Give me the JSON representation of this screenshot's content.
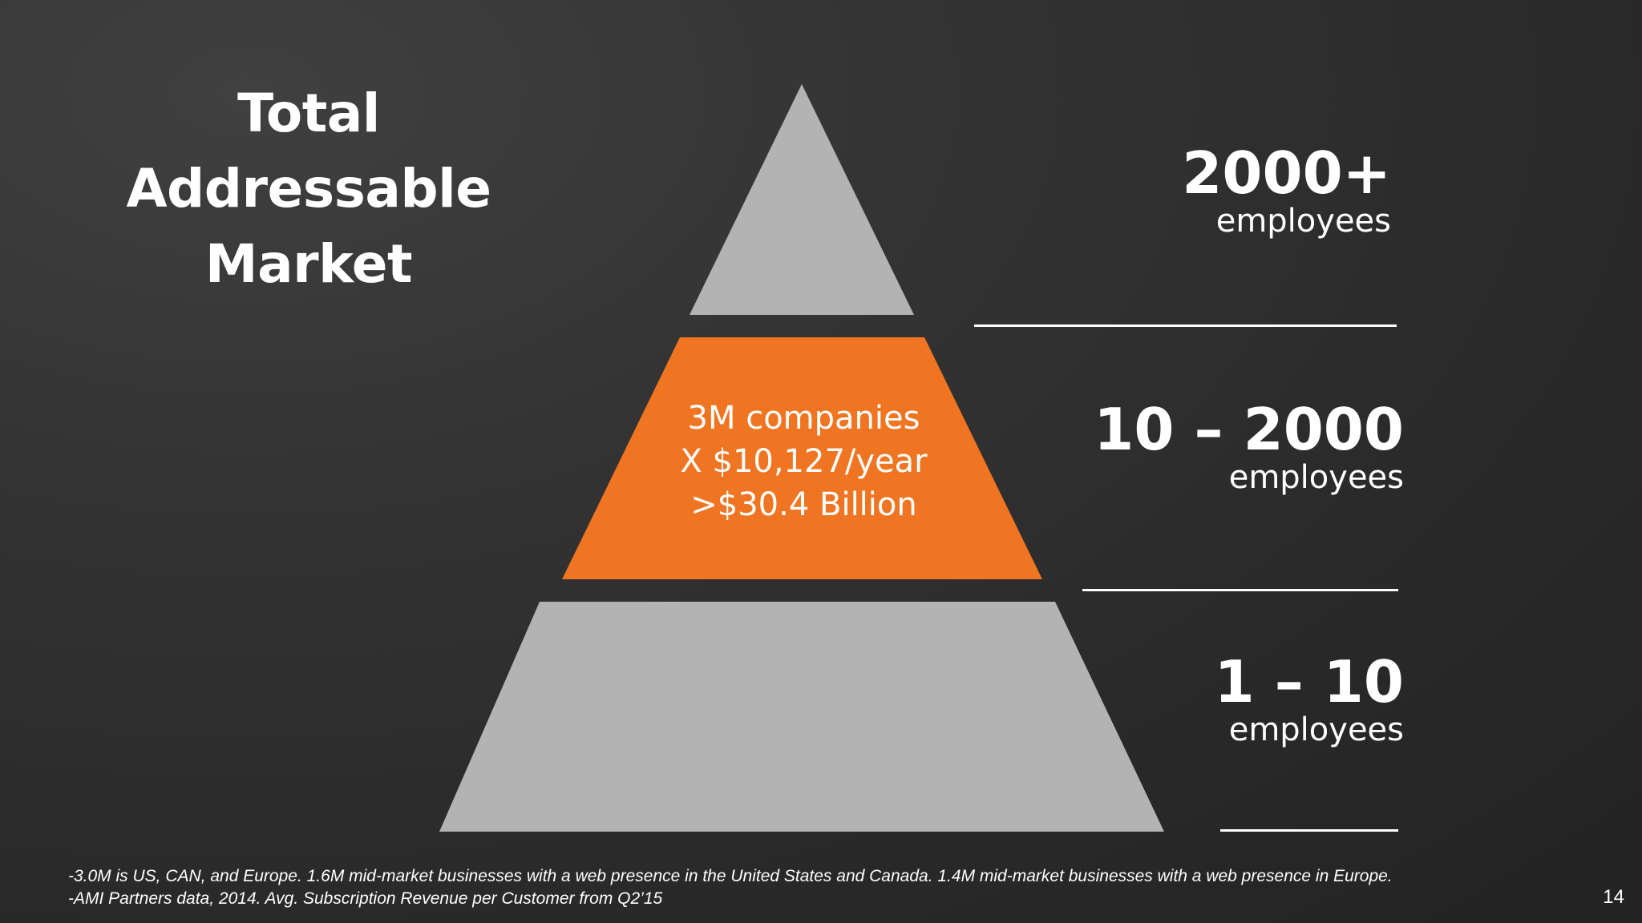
{
  "title": {
    "line1": "Total Addressable",
    "line2": "Market"
  },
  "pyramid": {
    "top_color": "#b3b3b3",
    "middle_color": "#f07522",
    "bottom_color": "#b3b3b3",
    "middle_text": {
      "line1": "3M companies",
      "line2": "X $10,127/year",
      "line3": ">$30.4 Billion"
    }
  },
  "tiers": [
    {
      "size": "2000+",
      "unit": "employees"
    },
    {
      "size": "10 – 2000",
      "unit": "employees"
    },
    {
      "size": "1 – 10",
      "unit": "employees"
    }
  ],
  "footnotes": [
    "-3.0M is US, CAN, and Europe. 1.6M mid-market businesses with a web presence in the United States and Canada. 1.4M mid-market businesses with a web presence in Europe.",
    "-AMI Partners data, 2014.  Avg. Subscription Revenue per Customer from Q2’15"
  ],
  "page_number": "14"
}
